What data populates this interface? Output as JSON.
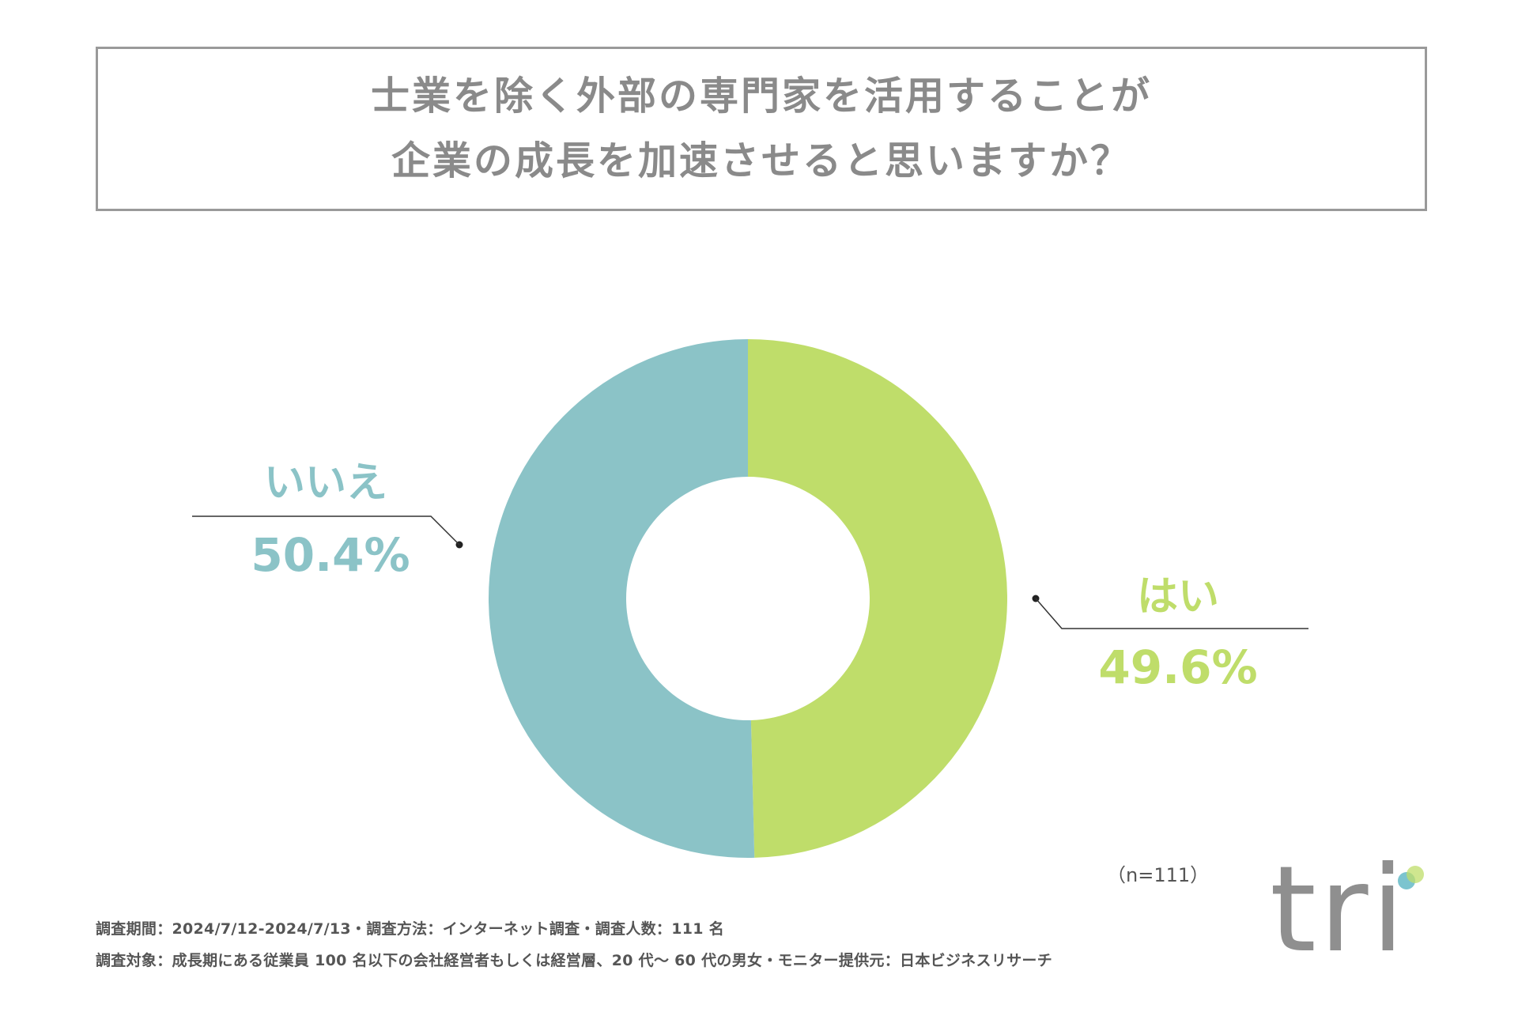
{
  "title": {
    "line1": "士業を除く外部の専門家を活用することが",
    "line2": "企業の成長を加速させると思いますか？"
  },
  "chart_data": {
    "type": "pie",
    "donut": true,
    "slices": [
      {
        "label": "はい",
        "value": 49.6,
        "value_text": "49.6%",
        "color": "#bfdd6a"
      },
      {
        "label": "いいえ",
        "value": 50.4,
        "value_text": "50.4%",
        "color": "#8bc3c7"
      }
    ]
  },
  "sample_note": "（n=111）",
  "footer": {
    "line1": "調査期間：2024/7/12-2024/7/13・調査方法：インターネット調査・調査人数：111 名",
    "line2": "調査対象：成長期にある従業員 100 名以下の会社経営者もしくは経営層、20 代～ 60 代の男女・モニター提供元：日本ビジネスリサーチ"
  },
  "logo": {
    "text": "tri",
    "dot_colors": [
      "#7cc4cf",
      "#bfdd6a"
    ]
  }
}
